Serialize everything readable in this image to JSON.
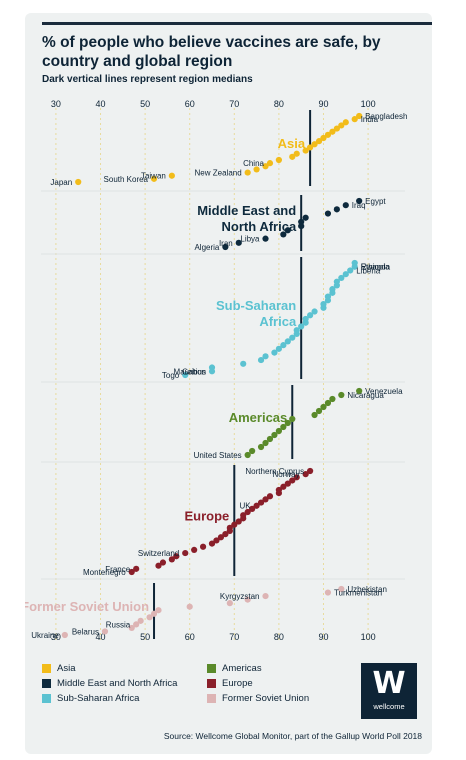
{
  "title": "% of people who believe vaccines are safe, by country and global region",
  "subtitle": "Dark vertical lines represent region medians",
  "source": "Source: Wellcome Global Monitor, part of the Gallup World Poll 2018",
  "logo": {
    "symbol": "W",
    "name": "wellcome"
  },
  "colors": {
    "Asia": "#f2bc1a",
    "Middle East and North Africa": "#0e2a3d",
    "Sub-Saharan Africa": "#5bc2d1",
    "Americas": "#5a8a2a",
    "Europe": "#8a1f2a",
    "Former Soviet Union": "#ddb4b4"
  },
  "chart_data": {
    "type": "scatter",
    "title": "% of people who believe vaccines are safe, by country and global region",
    "subtitle": "Dark vertical lines represent region medians",
    "x_ticks": [
      30,
      40,
      50,
      60,
      70,
      80,
      90,
      100
    ],
    "xlim": [
      28,
      102
    ],
    "legend_position": "bottom-left",
    "regions": [
      {
        "name": "Asia",
        "label": "Asia",
        "median": 87,
        "points": [
          35,
          52,
          56,
          73,
          75,
          77,
          78,
          80,
          83,
          84,
          86,
          87,
          88,
          89,
          90,
          91,
          92,
          93,
          94,
          95,
          97,
          98
        ],
        "labels": [
          {
            "text": "Japan",
            "x": 35
          },
          {
            "text": "South Korea",
            "x": 52
          },
          {
            "text": "Taiwan",
            "x": 56
          },
          {
            "text": "New Zealand",
            "x": 73
          },
          {
            "text": "China",
            "x": 78
          },
          {
            "text": "Bangladesh",
            "x": 98
          },
          {
            "text": "India",
            "x": 97
          }
        ]
      },
      {
        "name": "Middle East and North Africa",
        "label": "Middle East and North Africa",
        "median": 85,
        "points": [
          68,
          71,
          77,
          81,
          82,
          85,
          85,
          86,
          91,
          93,
          95,
          98
        ],
        "labels": [
          {
            "text": "Algeria",
            "x": 68
          },
          {
            "text": "Iran",
            "x": 71
          },
          {
            "text": "Libya",
            "x": 77
          },
          {
            "text": "Iraq",
            "x": 95
          },
          {
            "text": "Egypt",
            "x": 98
          }
        ]
      },
      {
        "name": "Sub-Saharan Africa",
        "label": "Sub-Saharan Africa",
        "median": 85,
        "points": [
          59,
          65,
          65,
          72,
          76,
          77,
          79,
          80,
          81,
          82,
          83,
          84,
          84,
          85,
          86,
          86,
          87,
          88,
          90,
          90,
          91,
          91,
          92,
          92,
          93,
          93,
          94,
          95,
          96,
          97,
          97
        ],
        "labels": [
          {
            "text": "Togo",
            "x": 59
          },
          {
            "text": "Gabon",
            "x": 65
          },
          {
            "text": "Mauritius",
            "x": 65
          },
          {
            "text": "Rwanda",
            "x": 97
          },
          {
            "text": "Ethiopia",
            "x": 97
          },
          {
            "text": "Liberia",
            "x": 96
          }
        ]
      },
      {
        "name": "Americas",
        "label": "Americas",
        "median": 83,
        "points": [
          73,
          74,
          76,
          77,
          78,
          79,
          80,
          81,
          82,
          83,
          88,
          89,
          90,
          91,
          92,
          94,
          98
        ],
        "labels": [
          {
            "text": "United States",
            "x": 73
          },
          {
            "text": "Venezuela",
            "x": 98
          },
          {
            "text": "Nicaragua",
            "x": 94
          }
        ]
      },
      {
        "name": "Europe",
        "label": "Europe",
        "median": 70,
        "points": [
          47,
          48,
          53,
          54,
          56,
          57,
          59,
          61,
          63,
          65,
          66,
          67,
          68,
          69,
          69,
          70,
          71,
          72,
          72,
          73,
          74,
          75,
          76,
          77,
          78,
          80,
          80,
          81,
          82,
          83,
          84,
          86,
          87
        ],
        "labels": [
          {
            "text": "Montenegro",
            "x": 47
          },
          {
            "text": "France",
            "x": 48
          },
          {
            "text": "Switzerland",
            "x": 59
          },
          {
            "text": "UK",
            "x": 75
          },
          {
            "text": "Norway",
            "x": 86
          },
          {
            "text": "Northern Cyprus",
            "x": 87
          }
        ]
      },
      {
        "name": "Former Soviet Union",
        "label": "Former Soviet Union",
        "median": 52,
        "points": [
          32,
          41,
          47,
          48,
          49,
          51,
          52,
          53,
          60,
          69,
          73,
          77,
          91,
          94
        ],
        "labels": [
          {
            "text": "Ukraine",
            "x": 32
          },
          {
            "text": "Belarus",
            "x": 41
          },
          {
            "text": "Russia",
            "x": 48
          },
          {
            "text": "Kyrgyzstan",
            "x": 77
          },
          {
            "text": "Uzbekistan",
            "x": 94
          },
          {
            "text": "Turkmenistan",
            "x": 91
          }
        ]
      }
    ]
  }
}
